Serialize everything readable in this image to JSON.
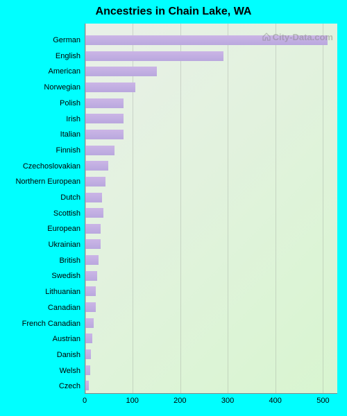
{
  "title": "Ancestries in Chain Lake, WA",
  "page_background": "#00ffff",
  "watermark": {
    "text": "City-Data.com",
    "color": "#808080"
  },
  "chart": {
    "type": "bar-horizontal",
    "plot_gradient_from": "#e9f0e8",
    "plot_gradient_to": "#d8f5d0",
    "bar_gradient_from": "#cbb5e6",
    "bar_gradient_to": "#b9a8de",
    "gridline_color": "rgba(120,120,120,0.25)",
    "axis_color": "#888888",
    "label_color": "#000000",
    "title_fontsize": 16,
    "label_fontsize": 11,
    "tick_fontsize": 11,
    "xlim": [
      0,
      530
    ],
    "xticks": [
      0,
      100,
      200,
      300,
      400,
      500
    ],
    "categories": [
      "German",
      "English",
      "American",
      "Norwegian",
      "Polish",
      "Irish",
      "Italian",
      "Finnish",
      "Czechoslovakian",
      "Northern European",
      "Dutch",
      "Scottish",
      "European",
      "Ukrainian",
      "British",
      "Swedish",
      "Lithuanian",
      "Canadian",
      "French Canadian",
      "Austrian",
      "Danish",
      "Welsh",
      "Czech"
    ],
    "values": [
      510,
      290,
      150,
      105,
      80,
      80,
      80,
      62,
      48,
      42,
      35,
      38,
      32,
      32,
      28,
      25,
      22,
      22,
      18,
      14,
      12,
      10,
      8
    ]
  }
}
